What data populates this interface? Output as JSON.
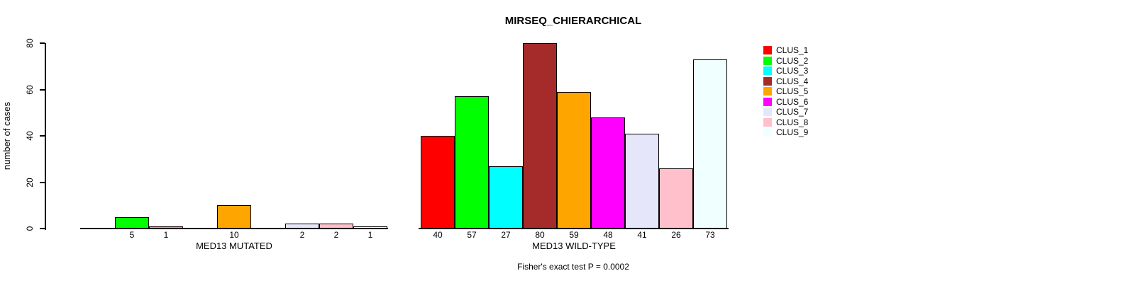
{
  "chart_data": {
    "type": "bar",
    "title": "MIRSEQ_CHIERARCHICAL",
    "ylabel": "number of cases",
    "ylim": [
      0,
      80
    ],
    "yticks": [
      0,
      20,
      40,
      60,
      80
    ],
    "grid": false,
    "legend_position": "right",
    "categories": [
      "MED13 MUTATED",
      "MED13 WILD-TYPE"
    ],
    "series": [
      {
        "name": "CLUS_1",
        "color": "#FF0000",
        "values": [
          0,
          40
        ]
      },
      {
        "name": "CLUS_2",
        "color": "#00FF00",
        "values": [
          5,
          57
        ]
      },
      {
        "name": "CLUS_3",
        "color": "#00FFFF",
        "values": [
          1,
          27
        ]
      },
      {
        "name": "CLUS_4",
        "color": "#A52A2A",
        "values": [
          0,
          80
        ]
      },
      {
        "name": "CLUS_5",
        "color": "#FFA500",
        "values": [
          10,
          59
        ]
      },
      {
        "name": "CLUS_6",
        "color": "#FF00FF",
        "values": [
          0,
          48
        ]
      },
      {
        "name": "CLUS_7",
        "color": "#E6E6FA",
        "values": [
          2,
          41
        ]
      },
      {
        "name": "CLUS_8",
        "color": "#FFC0CB",
        "values": [
          2,
          26
        ]
      },
      {
        "name": "CLUS_9",
        "color": "#F0FFFF",
        "values": [
          1,
          73
        ]
      }
    ],
    "annotation": "Fisher's exact test P = 0.0002"
  }
}
